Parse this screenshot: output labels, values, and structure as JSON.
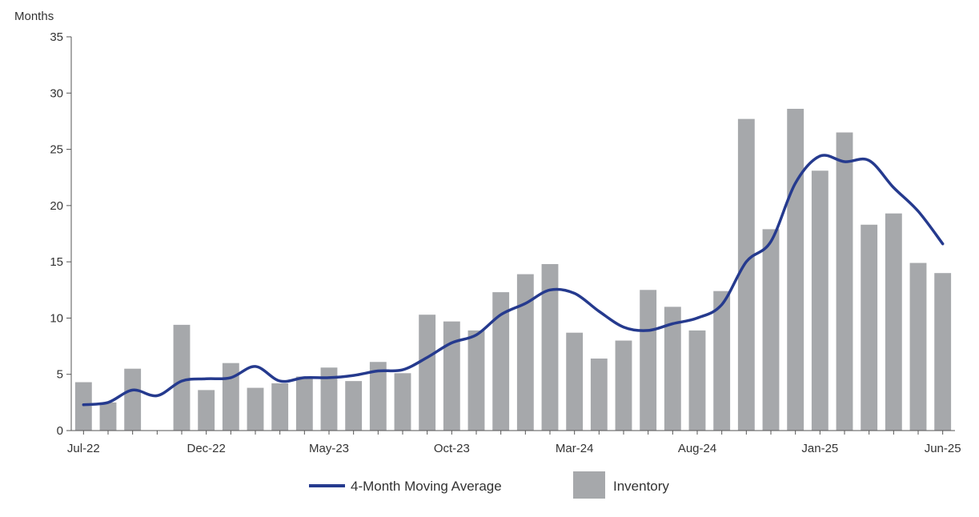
{
  "chart_data": {
    "type": "bar",
    "ylabel": "Months",
    "ylim": [
      0,
      35
    ],
    "yticks": [
      0,
      5,
      10,
      15,
      20,
      25,
      30,
      35
    ],
    "grid": false,
    "legend_position": "bottom-center",
    "categories": [
      "Jul-22",
      "Aug-22",
      "Sep-22",
      "Oct-22",
      "Nov-22",
      "Dec-22",
      "Jan-23",
      "Feb-23",
      "Mar-23",
      "Apr-23",
      "May-23",
      "Jun-23",
      "Jul-23",
      "Aug-23",
      "Sep-23",
      "Oct-23",
      "Nov-23",
      "Dec-23",
      "Jan-24",
      "Feb-24",
      "Mar-24",
      "Apr-24",
      "May-24",
      "Jun-24",
      "Jul-24",
      "Aug-24",
      "Sep-24",
      "Oct-24",
      "Nov-24",
      "Dec-24",
      "Jan-25",
      "Feb-25",
      "Mar-25",
      "Apr-25",
      "May-25",
      "Jun-25"
    ],
    "x_tick_labels": [
      "Jul-22",
      "Dec-22",
      "May-23",
      "Oct-23",
      "Mar-24",
      "Aug-24",
      "Jan-25",
      "Jun-25"
    ],
    "series": [
      {
        "name": "Inventory",
        "kind": "bar",
        "color": "#a6a8ab",
        "values": [
          4.3,
          2.5,
          5.5,
          0,
          9.4,
          3.6,
          6.0,
          3.8,
          4.2,
          4.8,
          5.6,
          4.4,
          6.1,
          5.1,
          10.3,
          9.7,
          8.9,
          12.3,
          13.9,
          14.8,
          8.7,
          6.4,
          8.0,
          12.5,
          11.0,
          8.9,
          12.4,
          27.7,
          17.9,
          28.6,
          23.1,
          26.5,
          18.3,
          19.3,
          14.9,
          14.0
        ]
      },
      {
        "name": "4-Month Moving Average",
        "kind": "line",
        "color": "#253a8e",
        "values": [
          2.3,
          2.5,
          3.6,
          3.1,
          4.4,
          4.6,
          4.7,
          5.7,
          4.4,
          4.7,
          4.7,
          4.9,
          5.3,
          5.4,
          6.5,
          7.8,
          8.5,
          10.3,
          11.3,
          12.5,
          12.2,
          10.6,
          9.2,
          8.9,
          9.5,
          10.0,
          11.2,
          15.0,
          16.8,
          22.0,
          24.4,
          23.9,
          24.0,
          21.6,
          19.5,
          16.6
        ]
      }
    ]
  }
}
